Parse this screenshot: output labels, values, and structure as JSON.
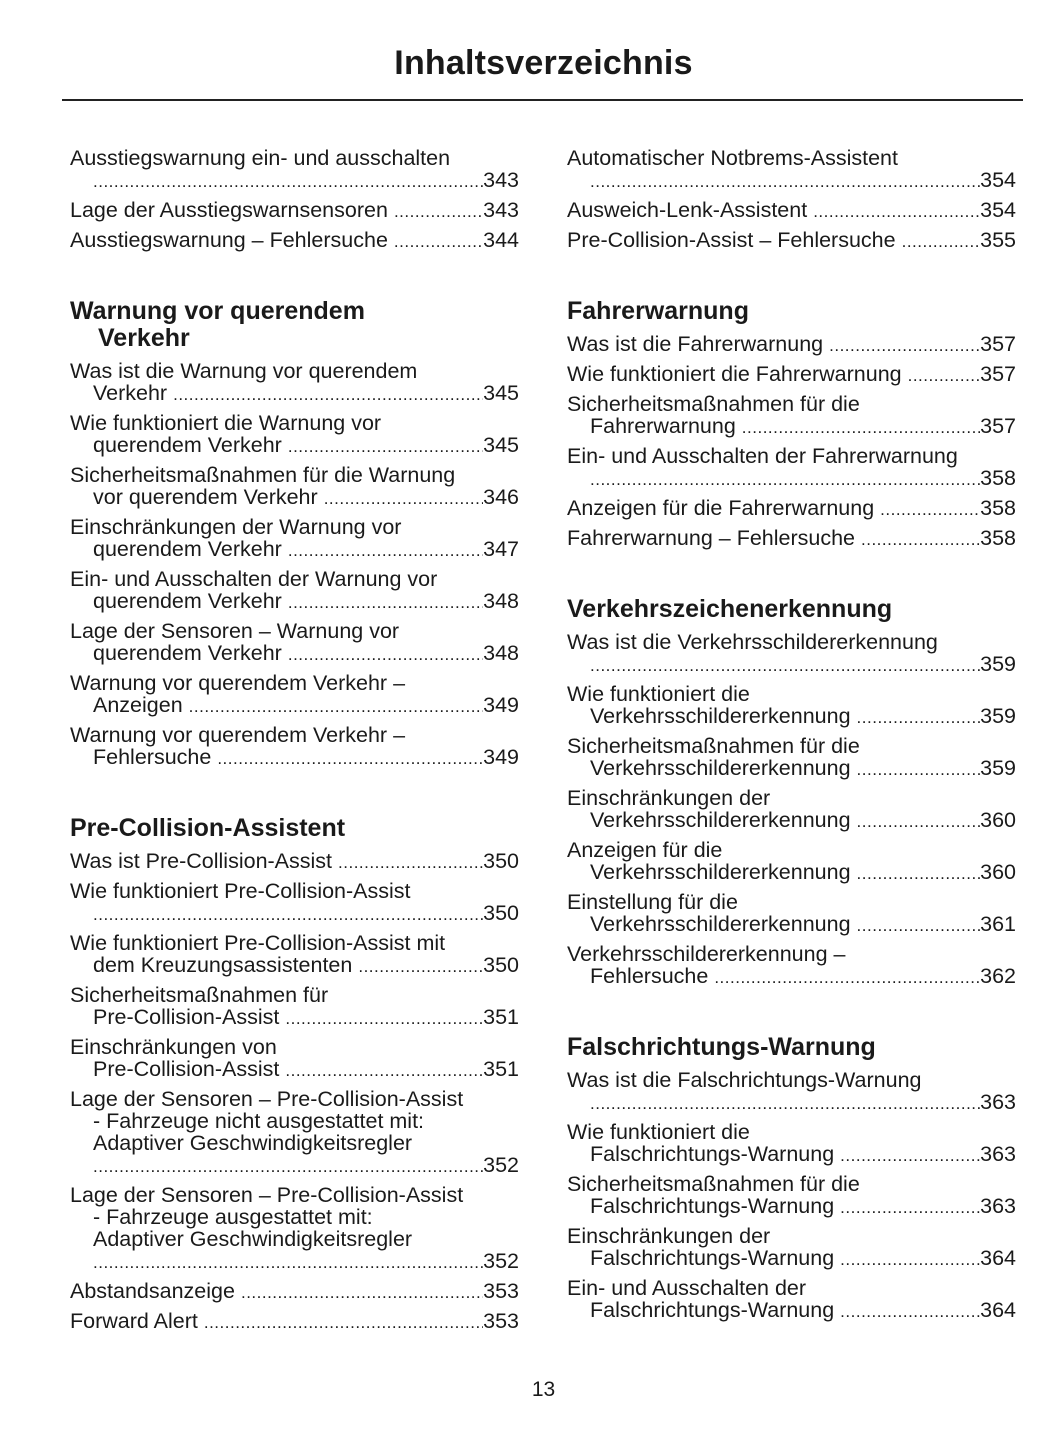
{
  "title": "Inhaltsverzeichnis",
  "page_number": "13",
  "columns": [
    {
      "sections": [
        {
          "heading": [],
          "entries": [
            {
              "lines": [
                "Ausstiegswarnung ein- und ausschalten",
                ""
              ],
              "page": "343"
            },
            {
              "lines": [
                "Lage der Ausstiegswarnsensoren"
              ],
              "page": "343"
            },
            {
              "lines": [
                "Ausstiegswarnung – Fehlersuche"
              ],
              "page": "344"
            }
          ]
        },
        {
          "heading": [
            "Warnung vor querendem",
            "Verkehr"
          ],
          "entries": [
            {
              "lines": [
                "Was ist die Warnung vor querendem",
                "Verkehr"
              ],
              "page": "345"
            },
            {
              "lines": [
                "Wie funktioniert die Warnung vor",
                "querendem Verkehr"
              ],
              "page": "345"
            },
            {
              "lines": [
                "Sicherheitsmaßnahmen für die Warnung",
                "vor querendem Verkehr"
              ],
              "page": "346"
            },
            {
              "lines": [
                "Einschränkungen der Warnung vor",
                "querendem Verkehr"
              ],
              "page": "347"
            },
            {
              "lines": [
                "Ein- und Ausschalten der Warnung vor",
                "querendem Verkehr"
              ],
              "page": "348"
            },
            {
              "lines": [
                "Lage der Sensoren – Warnung vor",
                "querendem Verkehr"
              ],
              "page": "348"
            },
            {
              "lines": [
                "Warnung vor querendem Verkehr –",
                "Anzeigen"
              ],
              "page": "349"
            },
            {
              "lines": [
                "Warnung vor querendem Verkehr –",
                "Fehlersuche"
              ],
              "page": "349"
            }
          ]
        },
        {
          "heading": [
            "Pre-Collision-Assistent"
          ],
          "entries": [
            {
              "lines": [
                "Was ist Pre-Collision-Assist"
              ],
              "page": "350"
            },
            {
              "lines": [
                "Wie funktioniert Pre-Collision-Assist",
                ""
              ],
              "page": "350"
            },
            {
              "lines": [
                "Wie funktioniert Pre-Collision-Assist mit",
                "dem Kreuzungsassistenten"
              ],
              "page": "350"
            },
            {
              "lines": [
                "Sicherheitsmaßnahmen für",
                "Pre-Collision-Assist"
              ],
              "page": "351"
            },
            {
              "lines": [
                "Einschränkungen von",
                "Pre-Collision-Assist"
              ],
              "page": "351"
            },
            {
              "lines": [
                "Lage der Sensoren – Pre-Collision-Assist",
                "- Fahrzeuge nicht ausgestattet mit:",
                "Adaptiver Geschwindigkeitsregler",
                ""
              ],
              "page": "352"
            },
            {
              "lines": [
                "Lage der Sensoren – Pre-Collision-Assist",
                "- Fahrzeuge ausgestattet mit:",
                "Adaptiver Geschwindigkeitsregler",
                ""
              ],
              "page": "352"
            },
            {
              "lines": [
                "Abstandsanzeige"
              ],
              "page": "353"
            },
            {
              "lines": [
                "Forward Alert"
              ],
              "page": "353"
            }
          ]
        }
      ]
    },
    {
      "sections": [
        {
          "heading": [],
          "entries": [
            {
              "lines": [
                "Automatischer Notbrems-Assistent",
                ""
              ],
              "page": "354"
            },
            {
              "lines": [
                "Ausweich-Lenk-Assistent"
              ],
              "page": "354"
            },
            {
              "lines": [
                "Pre-Collision-Assist – Fehlersuche"
              ],
              "page": "355"
            }
          ]
        },
        {
          "heading": [
            "Fahrerwarnung"
          ],
          "entries": [
            {
              "lines": [
                "Was ist die Fahrerwarnung"
              ],
              "page": "357"
            },
            {
              "lines": [
                "Wie funktioniert die Fahrerwarnung"
              ],
              "page": "357"
            },
            {
              "lines": [
                "Sicherheitsmaßnahmen für die",
                "Fahrerwarnung"
              ],
              "page": "357"
            },
            {
              "lines": [
                "Ein- und Ausschalten der Fahrerwarnung",
                ""
              ],
              "page": "358"
            },
            {
              "lines": [
                "Anzeigen für die Fahrerwarnung"
              ],
              "page": "358"
            },
            {
              "lines": [
                "Fahrerwarnung – Fehlersuche"
              ],
              "page": "358"
            }
          ]
        },
        {
          "heading": [
            "Verkehrszeichenerkennung"
          ],
          "entries": [
            {
              "lines": [
                "Was ist die Verkehrsschildererkennung",
                ""
              ],
              "page": "359"
            },
            {
              "lines": [
                "Wie funktioniert die",
                "Verkehrsschildererkennung"
              ],
              "page": "359"
            },
            {
              "lines": [
                "Sicherheitsmaßnahmen für die",
                "Verkehrsschildererkennung"
              ],
              "page": "359"
            },
            {
              "lines": [
                "Einschränkungen der",
                "Verkehrsschildererkennung"
              ],
              "page": "360"
            },
            {
              "lines": [
                "Anzeigen für die",
                "Verkehrsschildererkennung"
              ],
              "page": "360"
            },
            {
              "lines": [
                "Einstellung für die",
                "Verkehrsschildererkennung"
              ],
              "page": "361"
            },
            {
              "lines": [
                "Verkehrsschildererkennung –",
                "Fehlersuche"
              ],
              "page": "362"
            }
          ]
        },
        {
          "heading": [
            "Falschrichtungs-Warnung"
          ],
          "entries": [
            {
              "lines": [
                "Was ist die Falschrichtungs-Warnung",
                ""
              ],
              "page": "363"
            },
            {
              "lines": [
                "Wie funktioniert die",
                "Falschrichtungs-Warnung"
              ],
              "page": "363"
            },
            {
              "lines": [
                "Sicherheitsmaßnahmen für die",
                "Falschrichtungs-Warnung"
              ],
              "page": "363"
            },
            {
              "lines": [
                "Einschränkungen der",
                "Falschrichtungs-Warnung"
              ],
              "page": "364"
            },
            {
              "lines": [
                "Ein- und Ausschalten der",
                "Falschrichtungs-Warnung"
              ],
              "page": "364"
            }
          ]
        }
      ]
    }
  ]
}
